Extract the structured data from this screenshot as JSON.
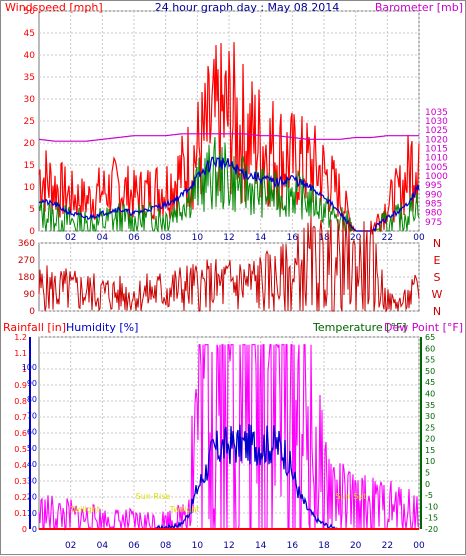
{
  "title": "24 hour graph day : May 08 2014",
  "colors": {
    "wind": "#ff0000",
    "gust": "#ff0000",
    "avg": "#0000cc",
    "green": "#008800",
    "baro": "#cc00cc",
    "dir": "#cc0000",
    "hum": "#0000cc",
    "temp": "#006600",
    "rain": "#ff0000",
    "magenta": "#ff00ff",
    "annot": "#dddd00",
    "grid": "#c8c8c8"
  },
  "x_ticks": [
    "02",
    "04",
    "06",
    "08",
    "10",
    "12",
    "14",
    "16",
    "18",
    "20",
    "22",
    "00"
  ],
  "chart_data": [
    {
      "type": "line",
      "title": "24 hour graph day : May 08 2014",
      "ylabel": "Windspeed [mph]",
      "y2label": "Barometer [mb]",
      "ylim": [
        0,
        50
      ],
      "y2lim": [
        970,
        1090
      ],
      "y_ticks": [
        "0",
        "5",
        "10",
        "15",
        "20",
        "25",
        "30",
        "35",
        "40",
        "45",
        "50"
      ],
      "y2_ticks": [
        "975",
        "980",
        "985",
        "990",
        "995",
        "1000",
        "1005",
        "1010",
        "1015",
        "1020",
        "1025",
        "1030",
        "1035"
      ],
      "x": [
        0,
        1,
        2,
        3,
        4,
        5,
        6,
        7,
        8,
        9,
        10,
        11,
        12,
        13,
        14,
        15,
        16,
        17,
        18,
        19,
        20,
        21,
        22,
        23,
        24
      ],
      "series": [
        {
          "name": "gust",
          "values": [
            13,
            10,
            8,
            7,
            9,
            10,
            8,
            9,
            10,
            13,
            18,
            24,
            26,
            22,
            20,
            18,
            16,
            15,
            13,
            8,
            0,
            0,
            6,
            10,
            20
          ]
        },
        {
          "name": "average",
          "values": [
            7,
            6,
            4,
            3,
            4,
            5,
            4,
            5,
            6,
            8,
            12,
            16,
            15,
            13,
            12,
            11,
            12,
            10,
            8,
            4,
            0,
            0,
            3,
            5,
            10
          ]
        },
        {
          "name": "green",
          "values": [
            4,
            3,
            2,
            1,
            2,
            3,
            2,
            3,
            3,
            6,
            10,
            13,
            12,
            10,
            9,
            8,
            9,
            7,
            5,
            2,
            0,
            0,
            1,
            3,
            7
          ]
        },
        {
          "name": "barometer",
          "values": [
            1020,
            1019,
            1019,
            1019,
            1020,
            1021,
            1022,
            1022,
            1022,
            1023,
            1023,
            1023,
            1023,
            1023,
            1022,
            1022,
            1021,
            1020,
            1020,
            1020,
            1021,
            1021,
            1022,
            1022,
            1022
          ]
        }
      ]
    },
    {
      "type": "line",
      "ylim": [
        0,
        360
      ],
      "y_ticks": [
        "0",
        "90",
        "180",
        "270",
        "360"
      ],
      "y2_ticks": [
        "N",
        "W",
        "S",
        "E",
        "N"
      ],
      "x": [
        0,
        1,
        2,
        3,
        4,
        5,
        6,
        7,
        8,
        9,
        10,
        11,
        12,
        13,
        14,
        15,
        16,
        17,
        18,
        19,
        20,
        21,
        22,
        22.5,
        23,
        24
      ],
      "series": [
        {
          "name": "direction",
          "values": [
            115,
            112,
            108,
            100,
            95,
            88,
            80,
            98,
            108,
            118,
            125,
            130,
            140,
            145,
            150,
            155,
            180,
            235,
            235,
            228,
            225,
            222,
            55,
            40,
            45,
            110
          ]
        }
      ]
    },
    {
      "type": "line",
      "ylabel": "Humidity [%]",
      "y2label": "Temperature [°F]",
      "y3label": "Rainfall [in]",
      "y4label": "Dew Point [°F]",
      "rain_ticks": [
        "0",
        "0.1",
        "0.2",
        "0.3",
        "0.4",
        "0.5",
        "0.6",
        "0.7",
        "0.8",
        "0.9",
        "1",
        "1.1",
        "1.2"
      ],
      "hum_ticks": [
        "0",
        "10",
        "20",
        "30",
        "40",
        "50",
        "60",
        "70",
        "80",
        "90",
        "100"
      ],
      "temp_ticks": [
        "-20",
        "-15",
        "-10",
        "-5",
        "0",
        "5",
        "10",
        "15",
        "20",
        "25",
        "30",
        "35",
        "40",
        "45",
        "50",
        "55",
        "60",
        "65"
      ],
      "x": [
        0,
        1,
        2,
        3,
        4,
        5,
        6,
        7,
        8,
        9,
        9.5,
        10,
        10.5,
        11,
        12,
        13,
        14,
        15,
        15.5,
        16,
        16.5,
        17,
        17.5,
        18,
        18.5,
        19,
        20,
        21,
        22,
        23,
        24
      ],
      "series": [
        {
          "name": "magenta",
          "values": [
            10,
            9,
            8,
            7,
            6,
            5,
            4,
            4,
            5,
            7,
            25,
            75,
            100,
            110,
            118,
            118,
            118,
            118,
            118,
            100,
            75,
            55,
            40,
            30,
            25,
            18,
            15,
            14,
            13,
            12,
            11
          ]
        },
        {
          "name": "humidity",
          "values": [
            0,
            0,
            0,
            0,
            0,
            0,
            0,
            0,
            1,
            3,
            10,
            25,
            35,
            48,
            52,
            52,
            52,
            52,
            48,
            35,
            20,
            12,
            6,
            3,
            1,
            0,
            0,
            0,
            0,
            0,
            0
          ]
        },
        {
          "name": "rainfall",
          "values": [
            0,
            0,
            0,
            0,
            0,
            0,
            0,
            0,
            0,
            0,
            0,
            0,
            0,
            0,
            0,
            0,
            0,
            0,
            0,
            0,
            0,
            0,
            0,
            0,
            0,
            0,
            0,
            0,
            0,
            0,
            0
          ]
        }
      ],
      "annotations": [
        {
          "text": "Sun Rise",
          "x": 7.2
        },
        {
          "text": "Sun Set",
          "x": 19.7
        },
        {
          "text": "Twilight",
          "x": 2.9
        },
        {
          "text": "Twilight",
          "x": 9.2
        }
      ]
    }
  ]
}
